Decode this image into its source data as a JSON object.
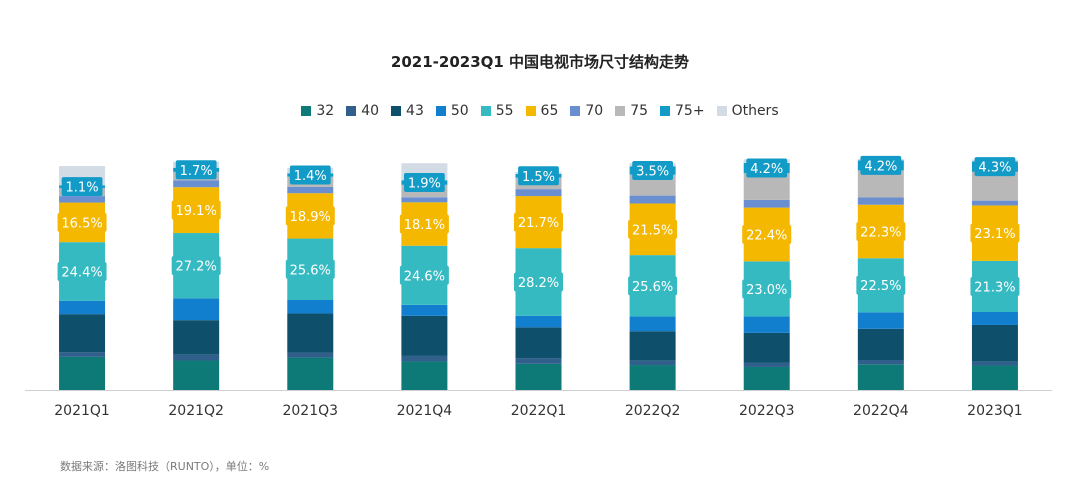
{
  "chart_data": {
    "type": "bar",
    "stacked": true,
    "title": "2021-2023Q1 中国电视市场尺寸结构走势",
    "source": "数据来源：洛图科技（RUNTO），单位：%",
    "categories": [
      "2021Q1",
      "2021Q2",
      "2021Q3",
      "2021Q4",
      "2022Q1",
      "2022Q2",
      "2022Q3",
      "2022Q4",
      "2023Q1"
    ],
    "ylim": [
      0,
      100
    ],
    "series": [
      {
        "name": "32",
        "color": "#0d7a78",
        "values": [
          13.8,
          12.3,
          13.5,
          11.9,
          10.9,
          10.4,
          9.6,
          10.7,
          10.2
        ]
      },
      {
        "name": "40",
        "color": "#2f5f8a",
        "values": [
          2.0,
          2.4,
          2.1,
          2.3,
          2.4,
          1.8,
          1.7,
          1.8,
          1.6
        ]
      },
      {
        "name": "43",
        "color": "#0e4f6b",
        "values": [
          15.8,
          14.4,
          16.3,
          16.7,
          12.8,
          12.3,
          12.5,
          13.0,
          15.3
        ]
      },
      {
        "name": "50",
        "color": "#127fce",
        "values": [
          5.6,
          9.1,
          5.6,
          4.6,
          4.8,
          6.1,
          6.8,
          6.9,
          5.4
        ]
      },
      {
        "name": "55",
        "color": "#35bac2",
        "values": [
          24.4,
          27.2,
          25.6,
          24.6,
          28.2,
          25.6,
          23.0,
          22.5,
          21.3
        ]
      },
      {
        "name": "65",
        "color": "#f4b800",
        "values": [
          16.5,
          19.1,
          18.9,
          18.1,
          21.7,
          21.5,
          22.4,
          22.3,
          23.1
        ]
      },
      {
        "name": "70",
        "color": "#6a8fd1",
        "values": [
          2.7,
          2.9,
          2.6,
          2.1,
          2.9,
          3.3,
          3.2,
          3.0,
          2.0
        ]
      },
      {
        "name": "75",
        "color": "#b8b8b8",
        "values": [
          3.4,
          3.5,
          4.3,
          5.2,
          4.8,
          8.7,
          11.2,
          11.3,
          12.0
        ]
      },
      {
        "name": "75+",
        "color": "#139bc8",
        "values": [
          1.1,
          1.7,
          1.4,
          1.9,
          1.5,
          3.5,
          4.2,
          4.2,
          4.3
        ]
      },
      {
        "name": "Others",
        "color": "#d3dbe5",
        "values": [
          8.0,
          2.5,
          2.2,
          7.1,
          0.8,
          1.3,
          1.5,
          0.6,
          0.8
        ]
      }
    ],
    "labeled_series": [
      "55",
      "65",
      "75+"
    ],
    "label_format": "{v}%",
    "legend_position": "top-center",
    "xlabel": "",
    "ylabel": ""
  }
}
